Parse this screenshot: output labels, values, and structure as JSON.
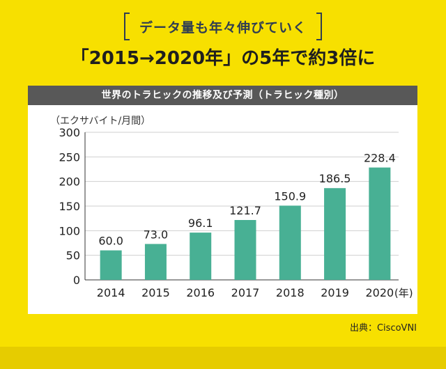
{
  "tag_label": "データ量も年々伸びていく",
  "headline": "「2015→2020年」の5年で約3倍に",
  "panel_title": "世界のトラヒックの推移及び予測（トラヒック種別）",
  "source": "出典：CiscoVNI",
  "colors": {
    "background": "#f7e000",
    "bar": "#48b094",
    "header": "#585858"
  },
  "chart_data": {
    "type": "bar",
    "title": "",
    "ylabel": "（エクサバイト/月間）",
    "xlabel": "(年)",
    "categories": [
      "2014",
      "2015",
      "2016",
      "2017",
      "2018",
      "2019",
      "2020"
    ],
    "values": [
      60.0,
      73.0,
      96.1,
      121.7,
      150.9,
      186.5,
      228.4
    ],
    "value_labels": [
      "60.0",
      "73.0",
      "96.1",
      "121.7",
      "150.9",
      "186.5",
      "228.4"
    ],
    "ylim": [
      0,
      300
    ],
    "yticks": [
      0,
      50,
      100,
      150,
      200,
      250,
      300
    ],
    "grid": true
  }
}
